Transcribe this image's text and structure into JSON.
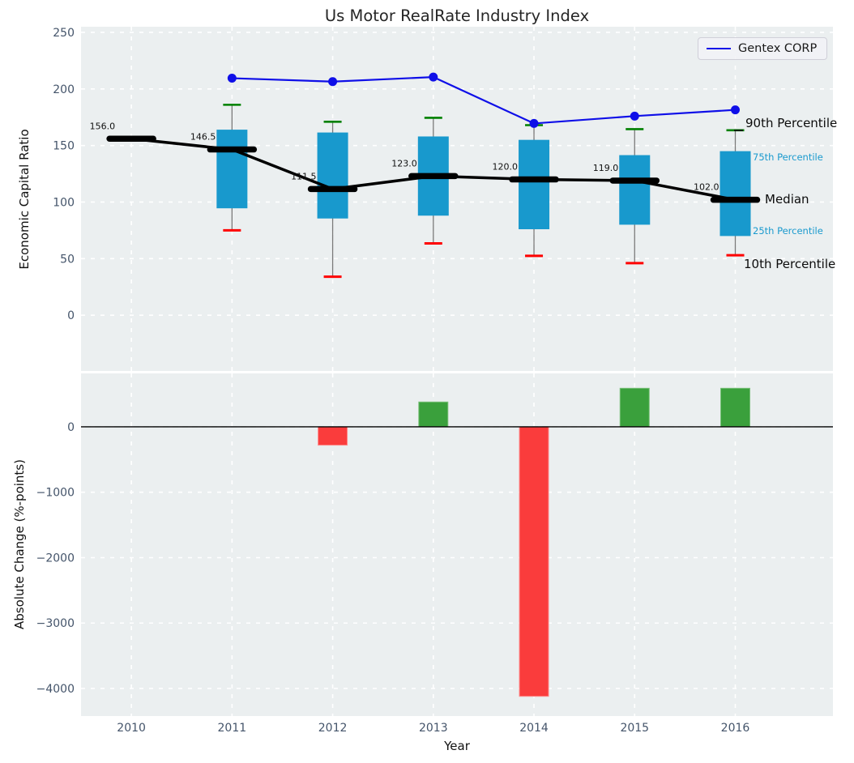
{
  "colors": {
    "axes_background": "#ebeff0",
    "grid": "#ffffff",
    "box_fill": "#1899cd",
    "green_cap": "#008000",
    "red_cap": "#fe0000",
    "bar_positive": "#3aa03c",
    "bar_positive_edge": "#79c079",
    "bar_negative": "#fa3c3c",
    "bar_negative_edge": "#ff8d8d",
    "gentex_line": "#0f0fe8",
    "median_line": "#000000",
    "whisker": "#7a7a7a",
    "tick_label": "#44546a",
    "title": "#262626",
    "annotation_blue": "#1a9ace",
    "zero_line": "#000000"
  },
  "chart_data": [
    {
      "type": "line",
      "subtype": "percentile-fan-with-boxes",
      "title": "Us Motor RealRate Industry Index",
      "ylabel": "Economic Capital Ratio",
      "x": [
        2010,
        2011,
        2012,
        2013,
        2014,
        2015,
        2016
      ],
      "xlim": [
        2009.5,
        2016.97
      ],
      "ylim": [
        -49.3,
        255
      ],
      "yticks": [
        250,
        200,
        150,
        100,
        50,
        0
      ],
      "grid": true,
      "legend": {
        "label": "Gentex CORP",
        "position": "upper right"
      },
      "series": [
        {
          "name": "Median",
          "role": "median",
          "values": [
            156.0,
            146.5,
            111.5,
            123.0,
            120.0,
            119.0,
            102.0
          ],
          "labels": [
            "156.0",
            "146.5",
            "111.5",
            "123.0",
            "120.0",
            "119.0",
            "102.0"
          ]
        },
        {
          "name": "75th Percentile",
          "role": "box_top",
          "values": [
            null,
            164,
            161.5,
            158,
            155,
            141.5,
            145
          ]
        },
        {
          "name": "25th Percentile",
          "role": "box_bottom",
          "values": [
            null,
            94.5,
            85.5,
            88,
            76,
            80,
            70
          ]
        },
        {
          "name": "90th Percentile",
          "role": "upper_cap",
          "values": [
            null,
            186,
            171,
            174.5,
            168,
            164.5,
            163.5
          ]
        },
        {
          "name": "10th Percentile",
          "role": "lower_cap",
          "values": [
            null,
            75,
            34,
            63.5,
            52.5,
            46,
            53
          ]
        },
        {
          "name": "Gentex CORP",
          "role": "company_line",
          "values": [
            null,
            209.5,
            206.5,
            210.5,
            169.5,
            176.0,
            181.5
          ]
        }
      ],
      "annotations": [
        {
          "text": "90th Percentile"
        },
        {
          "text": "75th Percentile"
        },
        {
          "text": "Median"
        },
        {
          "text": "25th Percentile"
        },
        {
          "text": "10th Percentile"
        }
      ]
    },
    {
      "type": "bar",
      "title": "",
      "ylabel": "Absolute Change (%-points)",
      "xlabel": "Year",
      "x": [
        2010,
        2011,
        2012,
        2013,
        2014,
        2015,
        2016
      ],
      "xticklabels": [
        "2010",
        "2011",
        "2012",
        "2013",
        "2014",
        "2015",
        "2016"
      ],
      "values": [
        null,
        null,
        -280,
        380,
        -4120,
        590,
        590
      ],
      "xlim": [
        2009.5,
        2016.97
      ],
      "ylim": [
        -4421,
        817
      ],
      "yticks": [
        0,
        -1000,
        -2000,
        -3000,
        -4000
      ],
      "grid": true,
      "zero_line": true
    }
  ]
}
